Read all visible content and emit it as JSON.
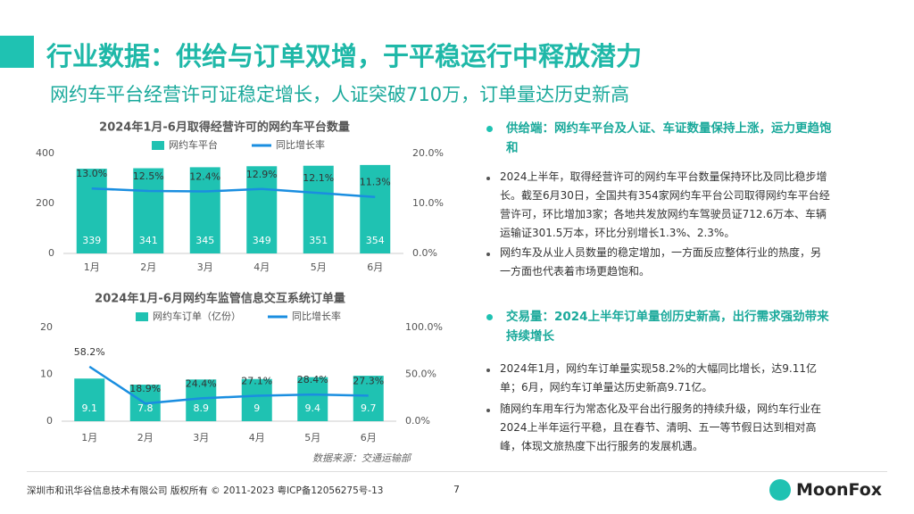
{
  "header": {
    "title": "行业数据：供给与订单双增，于平稳运行中释放潜力",
    "subtitle": "网约车平台经营许可证稳定增长，人证突破710万，订单量达历史新高"
  },
  "chart_data": [
    {
      "type": "combo",
      "title": "2024年1月-6月取得经营许可的网约车平台数量",
      "categories": [
        "1月",
        "2月",
        "3月",
        "4月",
        "5月",
        "6月"
      ],
      "series": [
        {
          "name": "网约车平台",
          "color": "#1fc2b2",
          "values": [
            339,
            341,
            345,
            349,
            351,
            354
          ]
        },
        {
          "name": "同比增长率",
          "color": "#1a8ee0",
          "axis": "y2",
          "values": [
            13.0,
            12.5,
            12.4,
            12.9,
            12.1,
            11.3
          ],
          "value_labels": [
            "13.0%",
            "12.5%",
            "12.4%",
            "12.9%",
            "12.1%",
            "11.3%"
          ]
        }
      ],
      "ylim": [
        0,
        400
      ],
      "yticks": [
        0,
        200,
        400
      ],
      "y2lim": [
        0,
        20
      ],
      "y2ticks": [
        {
          "value": 0,
          "label": "0.0%"
        },
        {
          "value": 10,
          "label": "10.0%"
        },
        {
          "value": 20,
          "label": "20.0%"
        }
      ],
      "grid": false
    },
    {
      "type": "combo",
      "title": "2024年1月-6月网约车监管信息交互系统订单量",
      "categories": [
        "1月",
        "2月",
        "3月",
        "4月",
        "5月",
        "6月"
      ],
      "series": [
        {
          "name": "网约车订单（亿份）",
          "color": "#1fc2b2",
          "values": [
            9.1,
            7.8,
            8.9,
            9.0,
            9.4,
            9.7
          ]
        },
        {
          "name": "同比增长率",
          "color": "#1a8ee0",
          "axis": "y2",
          "values": [
            58.2,
            18.9,
            24.4,
            27.1,
            28.4,
            27.3
          ],
          "value_labels": [
            "58.2%",
            "18.9%",
            "24.4%",
            "27.1%",
            "28.4%",
            "27.3%"
          ]
        }
      ],
      "ylim": [
        0,
        20
      ],
      "yticks": [
        0,
        10,
        20
      ],
      "y2lim": [
        0,
        100
      ],
      "y2ticks": [
        {
          "value": 0,
          "label": "0.0%"
        },
        {
          "value": 50,
          "label": "50.0%"
        },
        {
          "value": 100,
          "label": "100.0%"
        }
      ],
      "grid": false
    }
  ],
  "source": "数据来源：交通运输部",
  "sections": [
    {
      "heading": "供给端：网约车平台及人证、车证数量保持上涨，运力更趋饱和",
      "bullets": [
        "2024上半年，取得经营许可的网约车平台数量保持环比及同比稳步增长。截至6月30日，全国共有354家网约车平台公司取得网约车平台经营许可，环比增加3家；各地共发放网约车驾驶员证712.6万本、车辆运输证301.5万本，环比分别增长1.3%、2.3%。",
        "网约车及从业人员数量的稳定增加，一方面反应整体行业的热度，另一方面也代表着市场更趋饱和。"
      ]
    },
    {
      "heading": "交易量：2024上半年订单量创历史新高，出行需求强劲带来持续增长",
      "bullets": [
        "2024年1月，网约车订单量实现58.2%的大幅同比增长，达9.11亿单；6月，网约车订单量达历史新高9.71亿。",
        "随网约车用车行为常态化及平台出行服务的持续升级，网约车行业在2024上半年运行平稳，且在春节、清明、五一等节假日达到相对高峰，体现文旅热度下出行服务的发展机遇。"
      ]
    }
  ],
  "footer": {
    "copyright": "深圳市和讯华谷信息技术有限公司 版权所有 © 2011-2023 粤ICP备12056275号-13",
    "page": 7,
    "logo": "MoonFox"
  }
}
